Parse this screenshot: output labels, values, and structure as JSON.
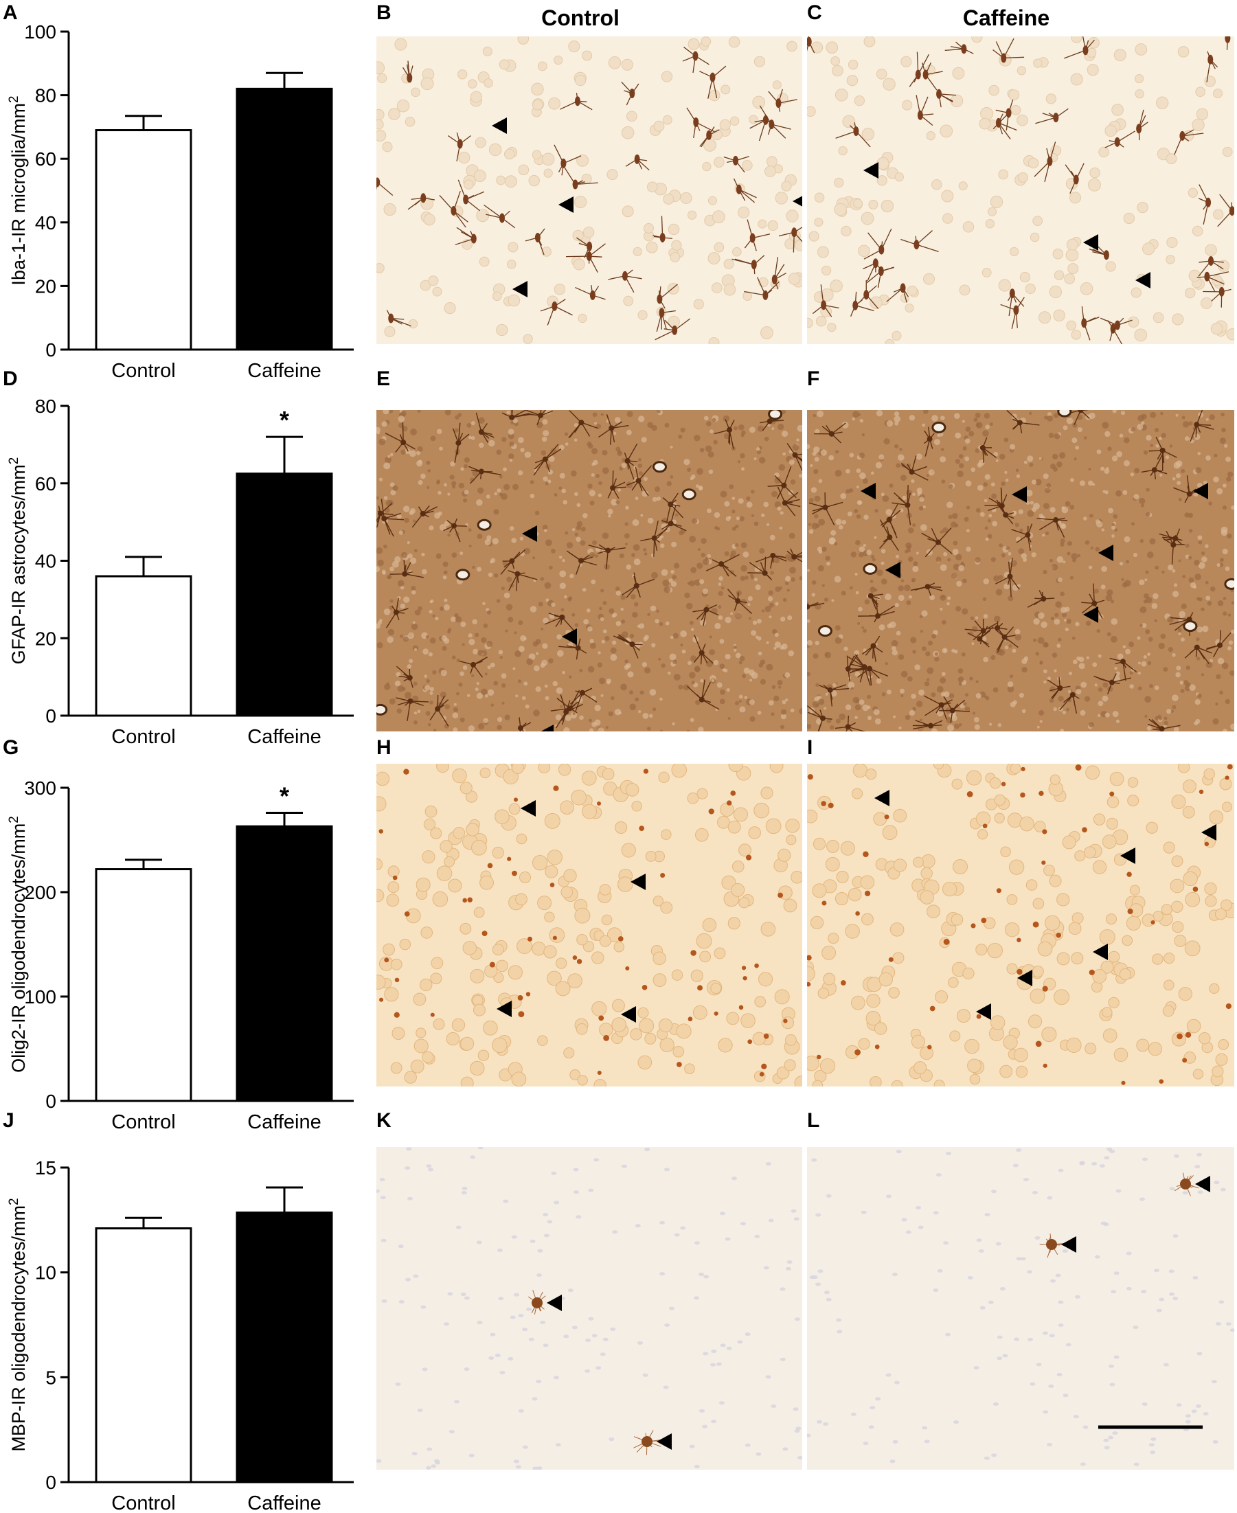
{
  "column_titles": [
    "Control",
    "Caffeine"
  ],
  "micrograph_panels": [
    {
      "letter": "B",
      "stain": "microglia",
      "arrows": 4
    },
    {
      "letter": "C",
      "stain": "microglia",
      "arrows": 3
    },
    {
      "letter": "E",
      "stain": "astrocyte",
      "arrows": 3
    },
    {
      "letter": "F",
      "stain": "astrocyte",
      "arrows": 6
    },
    {
      "letter": "H",
      "stain": "olig2",
      "arrows": 4
    },
    {
      "letter": "I",
      "stain": "olig2",
      "arrows": 6
    },
    {
      "letter": "K",
      "stain": "mbp",
      "arrows": 2
    },
    {
      "letter": "L",
      "stain": "mbp",
      "arrows": 2
    }
  ],
  "colors": {
    "control_bar": "#ffffff",
    "caffeine_bar": "#000000",
    "microglia_bg": "#f8efdf",
    "astrocyte_bg": "#b8875a",
    "olig2_bg": "#f7e3c2",
    "mbp_bg": "#f5eee4"
  },
  "chart_data": [
    {
      "letter": "A",
      "type": "bar",
      "categories": [
        "Control",
        "Caffeine"
      ],
      "values": [
        69,
        82
      ],
      "errors": [
        4.5,
        5
      ],
      "ylabel": "Iba-1-IR microglia/mm²",
      "ylim": [
        0,
        100
      ],
      "yticks": [
        "0",
        "20",
        "40",
        "60",
        "80",
        "100"
      ],
      "significance": [
        "",
        ""
      ]
    },
    {
      "letter": "D",
      "type": "bar",
      "categories": [
        "Control",
        "Caffeine"
      ],
      "values": [
        36,
        62.5
      ],
      "errors": [
        5,
        9.5
      ],
      "ylabel": "GFAP-IR astrocytes/mm²",
      "ylim": [
        0,
        80
      ],
      "yticks": [
        "0",
        "20",
        "40",
        "60",
        "80"
      ],
      "significance": [
        "",
        "*"
      ]
    },
    {
      "letter": "G",
      "type": "bar",
      "categories": [
        "Control",
        "Caffeine"
      ],
      "values": [
        222,
        263
      ],
      "errors": [
        9,
        13
      ],
      "ylabel": "Olig2-IR oligodendrocytes/mm²",
      "ylim": [
        0,
        300
      ],
      "yticks": [
        "0",
        "100",
        "200",
        "300"
      ],
      "significance": [
        "",
        "*"
      ]
    },
    {
      "letter": "J",
      "type": "bar",
      "categories": [
        "Control",
        "Caffeine"
      ],
      "values": [
        12.1,
        12.85
      ],
      "errors": [
        0.5,
        1.2
      ],
      "ylabel": "MBP-IR oligodendrocytes/mm²",
      "ylim": [
        0,
        15
      ],
      "yticks": [
        "0",
        "5",
        "10",
        "15"
      ],
      "significance": [
        "",
        ""
      ]
    }
  ]
}
